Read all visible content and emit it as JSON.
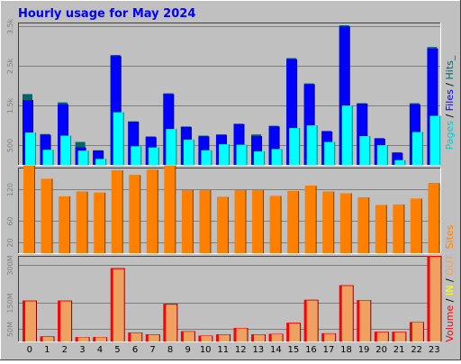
{
  "title": "Hourly usage for May 2024",
  "colors": {
    "frame_bg": "#c0c0c0",
    "plot_bg": "#c0c0c0",
    "title": "#0000ff",
    "hits": "#006666",
    "files": "#0000ff",
    "pages": "#00ffff",
    "sites": "#ff8000",
    "volume": "#ff0000",
    "in_out": "#f0a060"
  },
  "legend": {
    "top": [
      {
        "text": "Pages",
        "color": "#00cccc"
      },
      {
        "text": " / ",
        "color": "#000000"
      },
      {
        "text": "Files",
        "color": "#0000ff"
      },
      {
        "text": " / ",
        "color": "#000000"
      },
      {
        "text": "Hits_",
        "color": "#006666"
      }
    ],
    "middle": [
      {
        "text": "Sites",
        "color": "#ff8000"
      }
    ],
    "bottom": [
      {
        "text": "Volume",
        "color": "#ff0000"
      },
      {
        "text": " / ",
        "color": "#000000"
      },
      {
        "text": "IN",
        "color": "#ffff00"
      },
      {
        "text": " / ",
        "color": "#000000"
      },
      {
        "text": "OUT",
        "color": "#f0a060"
      }
    ]
  },
  "chart_data": [
    {
      "type": "bar",
      "panel": "hits-files-pages",
      "categories": [
        "0",
        "1",
        "2",
        "3",
        "4",
        "5",
        "6",
        "7",
        "8",
        "9",
        "10",
        "11",
        "12",
        "13",
        "14",
        "15",
        "16",
        "17",
        "18",
        "19",
        "20",
        "21",
        "22",
        "23"
      ],
      "ylim": [
        0,
        3600
      ],
      "yticks": [
        {
          "value": 500,
          "label": "500"
        },
        {
          "value": 1500,
          "label": "1.5k"
        },
        {
          "value": 2500,
          "label": "2.5k"
        },
        {
          "value": 3500,
          "label": "3.5k"
        }
      ],
      "series": [
        {
          "name": "Hits",
          "values": [
            1790,
            780,
            1580,
            580,
            370,
            2780,
            1100,
            720,
            1810,
            970,
            740,
            770,
            1040,
            770,
            990,
            2700,
            2060,
            860,
            3530,
            1560,
            680,
            320,
            1560,
            2980
          ]
        },
        {
          "name": "Files",
          "values": [
            1640,
            760,
            1530,
            440,
            360,
            2750,
            1090,
            700,
            1790,
            960,
            720,
            760,
            1030,
            730,
            970,
            2670,
            2040,
            840,
            3500,
            1550,
            660,
            300,
            1530,
            2940
          ]
        },
        {
          "name": "Pages",
          "values": [
            820,
            380,
            740,
            360,
            150,
            1330,
            470,
            440,
            910,
            640,
            370,
            520,
            510,
            340,
            400,
            930,
            1000,
            580,
            1500,
            730,
            500,
            120,
            830,
            1240
          ]
        }
      ]
    },
    {
      "type": "bar",
      "panel": "sites",
      "categories": [
        "0",
        "1",
        "2",
        "3",
        "4",
        "5",
        "6",
        "7",
        "8",
        "9",
        "10",
        "11",
        "12",
        "13",
        "14",
        "15",
        "16",
        "17",
        "18",
        "19",
        "20",
        "21",
        "22",
        "23"
      ],
      "ylim": [
        0,
        160
      ],
      "yticks": [
        {
          "value": 20,
          "label": "20"
        },
        {
          "value": 60,
          "label": "60"
        },
        {
          "value": 120,
          "label": "120"
        }
      ],
      "series": [
        {
          "name": "Sites",
          "values": [
            164,
            139,
            106,
            115,
            113,
            155,
            146,
            156,
            164,
            118,
            118,
            105,
            118,
            118,
            107,
            116,
            126,
            115,
            112,
            104,
            90,
            91,
            102,
            131
          ]
        }
      ]
    },
    {
      "type": "bar",
      "panel": "volume",
      "categories": [
        "0",
        "1",
        "2",
        "3",
        "4",
        "5",
        "6",
        "7",
        "8",
        "9",
        "10",
        "11",
        "12",
        "13",
        "14",
        "15",
        "16",
        "17",
        "18",
        "19",
        "20",
        "21",
        "22",
        "23"
      ],
      "ylim": [
        0,
        335
      ],
      "yticks": [
        {
          "value": 50,
          "label": "50M"
        },
        {
          "value": 150,
          "label": "150M"
        },
        {
          "value": 300,
          "label": "300M"
        }
      ],
      "series": [
        {
          "name": "Volume",
          "values": [
            160,
            20,
            160,
            17,
            17,
            287,
            35,
            28,
            148,
            40,
            23,
            28,
            53,
            28,
            30,
            73,
            163,
            32,
            220,
            162,
            38,
            38,
            76,
            335
          ]
        },
        {
          "name": "OUT",
          "values": [
            157,
            18,
            157,
            16,
            16,
            283,
            33,
            26,
            144,
            38,
            21,
            26,
            51,
            26,
            28,
            70,
            160,
            30,
            217,
            160,
            36,
            36,
            74,
            331
          ]
        }
      ]
    }
  ]
}
